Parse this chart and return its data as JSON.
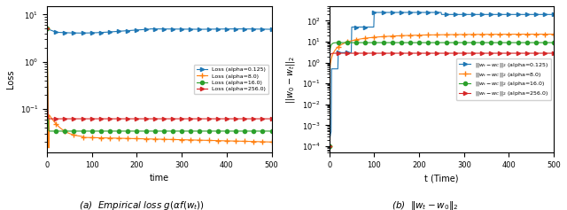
{
  "left": {
    "xlabel": "time",
    "ylabel": "Loss",
    "xlim": [
      0,
      500
    ],
    "ylim": [
      0.012,
      15
    ],
    "legend_labels": [
      "Loss (alpha=0.125)",
      "Loss (alpha=8.0)",
      "Loss (alpha=16.0)",
      "Loss (alpha=256.0)"
    ],
    "colors": [
      "#1f77b4",
      "#ff7f0e",
      "#2ca02c",
      "#d62728"
    ],
    "markers": [
      ">",
      "+",
      "o",
      ">"
    ],
    "markersizes": [
      3,
      4,
      3,
      3
    ]
  },
  "right": {
    "xlabel": "t (Time)",
    "ylabel": "$||w_0-w_t||_2$",
    "xlim": [
      0,
      500
    ],
    "ylim": [
      5e-05,
      500.0
    ],
    "legend_labels": [
      "||w_t - w_C||_2 (alpha=0.125)",
      "||w_t - w_C||_2 (alpha=8.0)",
      "||w_t - w_C||_2 (alpha=16.0)",
      "||w_t - w_C||_2 (alpha=256.0)"
    ],
    "colors": [
      "#1f77b4",
      "#ff7f0e",
      "#2ca02c",
      "#d62728"
    ],
    "markers": [
      ">",
      "+",
      "o",
      ">"
    ],
    "markersizes": [
      3,
      4,
      3,
      3
    ]
  },
  "caption_left": "(a)  Empirical loss $g(\\alpha f(w_t))$",
  "caption_right": "(b)  $\\|w_t - w_0\\|_2$"
}
